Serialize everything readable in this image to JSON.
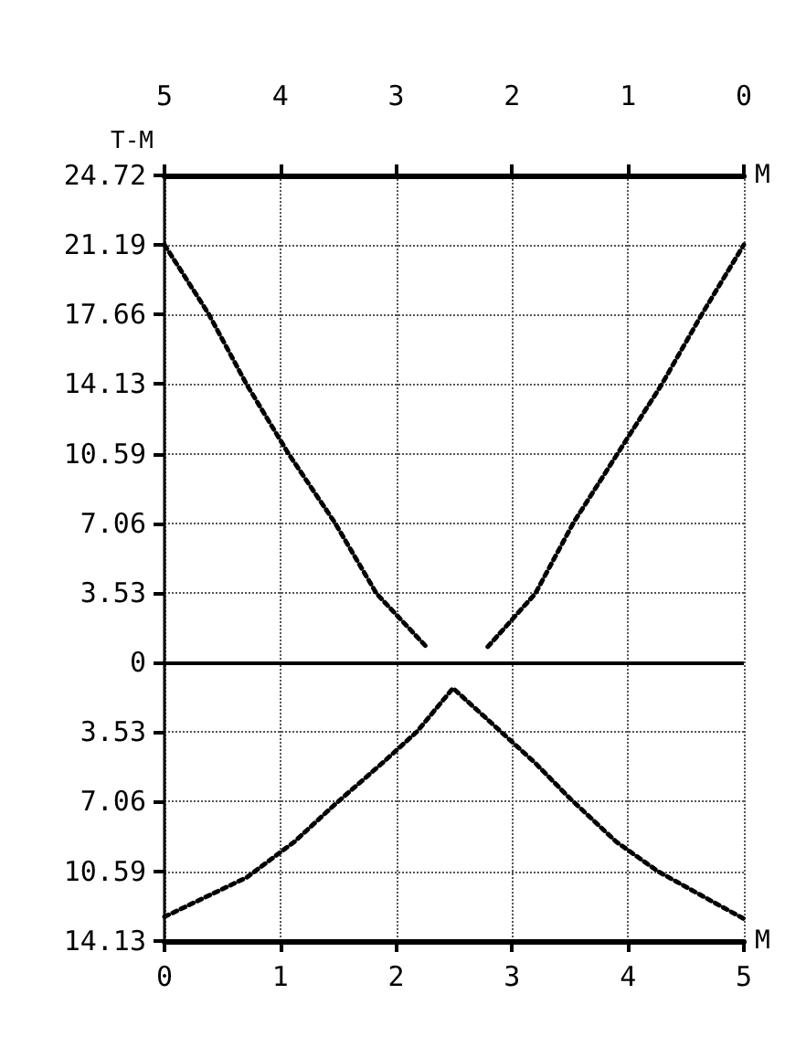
{
  "chart_data": {
    "type": "line",
    "ylabel": "T-M",
    "xlabel": "M",
    "x2label": "M",
    "xlim": [
      0,
      5
    ],
    "xticks": [
      0,
      1,
      2,
      3,
      4,
      5
    ],
    "x2lim": [
      5,
      0
    ],
    "x2ticks": [
      5,
      4,
      3,
      2,
      1,
      0
    ],
    "ylim": [
      -14.13,
      24.72
    ],
    "yticks": [
      24.72,
      21.19,
      17.66,
      14.13,
      10.59,
      7.06,
      3.53,
      0,
      {
        "value": -3.53,
        "label": "3.53"
      },
      {
        "value": -7.06,
        "label": "7.06"
      },
      {
        "value": -10.59,
        "label": "10.59"
      },
      {
        "value": -14.13,
        "label": "14.13"
      }
    ],
    "series": [
      {
        "color": "#000000",
        "x": [
          0,
          0.38,
          0.71,
          1.07,
          1.47,
          1.83,
          2.26
        ],
        "values": [
          21.2,
          17.7,
          14.1,
          10.6,
          7.1,
          3.5,
          0.8
        ]
      },
      {
        "color": "#000000",
        "x": [
          2.79,
          3.2,
          3.53,
          3.91,
          4.29,
          4.64,
          5
        ],
        "values": [
          0.8,
          3.5,
          7.1,
          10.6,
          14.1,
          17.7,
          21.2
        ]
      },
      {
        "color": "#000000",
        "x": [
          0,
          0.71,
          1.12,
          1.47,
          1.88,
          2.18,
          2.49,
          2.79,
          3.2,
          3.5,
          3.9,
          4.26,
          4.72,
          5
        ],
        "values": [
          -12.9,
          -10.9,
          -9.1,
          -7.2,
          -5.1,
          -3.5,
          -1.3,
          -2.9,
          -5.1,
          -6.9,
          -9.1,
          -10.6,
          -12.1,
          -13.0
        ]
      }
    ],
    "ref_lines": [
      {
        "axis": "y",
        "value": 0,
        "color": "#000000"
      }
    ],
    "grid": true,
    "line_style": "dotted",
    "marker": "none"
  }
}
